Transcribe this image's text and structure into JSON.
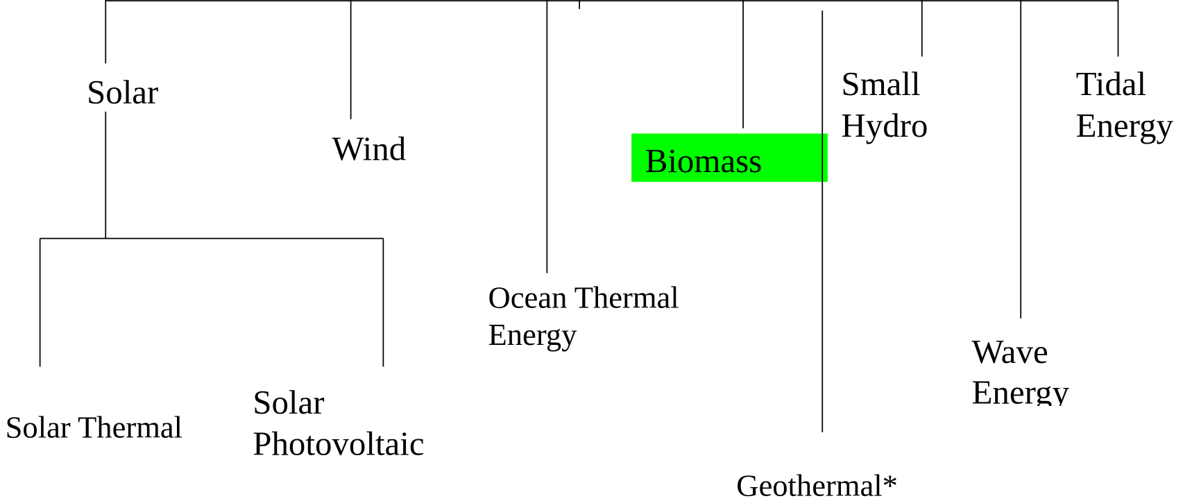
{
  "nodes": [
    {
      "label": [
        "Solar"
      ]
    },
    {
      "label": [
        "Wind"
      ]
    },
    {
      "label": [
        "Ocean Thermal",
        "Energy"
      ]
    },
    {
      "label": [
        "Biomass"
      ]
    },
    {
      "label": [
        "Geothermal*"
      ]
    },
    {
      "label": [
        "Small",
        "Hydro"
      ]
    },
    {
      "label": [
        "Wave",
        "Energy"
      ]
    },
    {
      "label": [
        "Tidal",
        "Energy"
      ]
    },
    {
      "label": [
        "Solar Thermal"
      ]
    },
    {
      "label": [
        "Solar",
        "Photovoltaic"
      ]
    }
  ]
}
